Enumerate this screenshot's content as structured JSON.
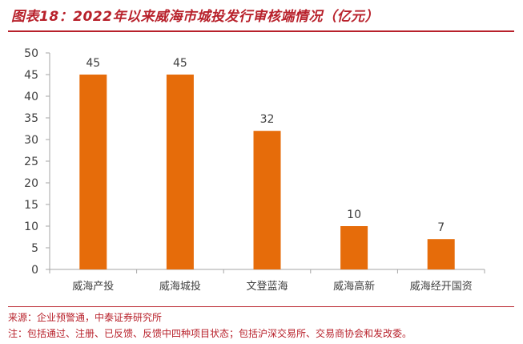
{
  "figure": {
    "title": "图表18：2022年以来威海市城投发行审核端情况（亿元）",
    "source": "来源：企业预警通，中泰证券研究所",
    "note": "注：包括通过、注册、已反馈、反馈中四种项目状态；包括沪深交易所、交易商协会和发改委。"
  },
  "colors": {
    "accent": "#b8212b",
    "bar": "#e66c0a",
    "axis": "#a6a6a6",
    "text": "#404040"
  },
  "chart_data": {
    "type": "bar",
    "categories": [
      "威海产投",
      "威海城投",
      "文登蓝海",
      "威海高新",
      "威海经开国资"
    ],
    "values": [
      45,
      45,
      32,
      10,
      7
    ],
    "ylim": [
      0,
      50
    ],
    "yticks": [
      0,
      5,
      10,
      15,
      20,
      25,
      30,
      35,
      40,
      45,
      50
    ],
    "grid": false,
    "legend": "none"
  }
}
